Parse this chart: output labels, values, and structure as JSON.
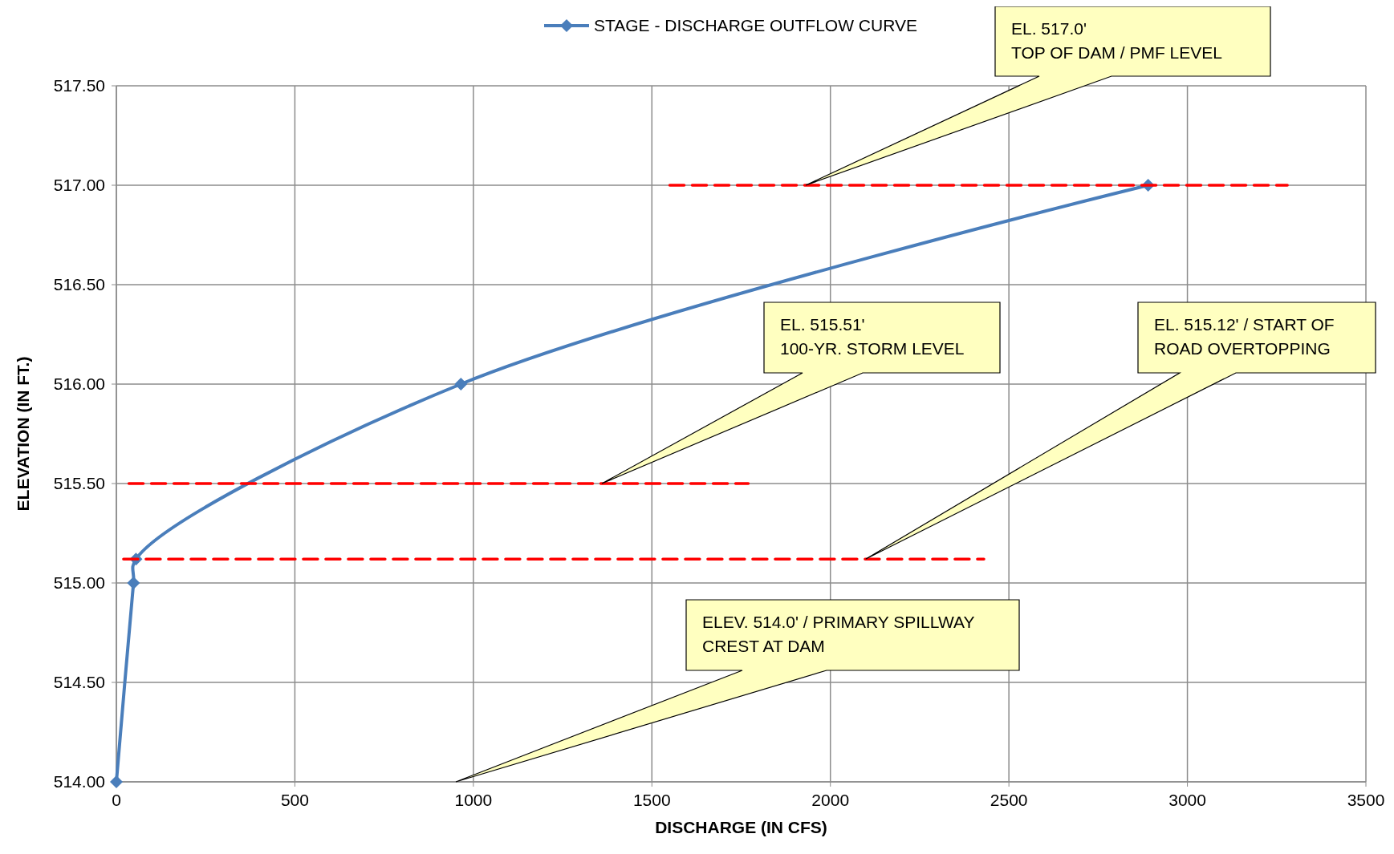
{
  "chart_data": {
    "type": "line",
    "xlabel": "DISCHARGE (IN CFS)",
    "ylabel": "ELEVATION (IN FT.)",
    "xlim": [
      0,
      3500
    ],
    "xticks": [
      0,
      500,
      1000,
      1500,
      2000,
      2500,
      3000,
      3500
    ],
    "ylim": [
      514,
      517.5
    ],
    "yticks": [
      {
        "value": 514,
        "label": "514.00"
      },
      {
        "value": 514.5,
        "label": "514.50"
      },
      {
        "value": 515,
        "label": "515.00"
      },
      {
        "value": 515.5,
        "label": "515.50"
      },
      {
        "value": 516,
        "label": "516.00"
      },
      {
        "value": 516.5,
        "label": "516.50"
      },
      {
        "value": 517,
        "label": "517.00"
      },
      {
        "value": 517.5,
        "label": "517.50"
      }
    ],
    "grid": true,
    "legend": "top",
    "series": [
      {
        "name": "STAGE - DISCHARGE OUTFLOW CURVE",
        "color": "#4a7ebb",
        "x": [
          0,
          48,
          55,
          965,
          2890
        ],
        "values": [
          514,
          515,
          515.12,
          516,
          517
        ],
        "marker": "diamond",
        "line_style": "solid"
      },
      {
        "color": "#ff0000",
        "x": [
          1550,
          3280
        ],
        "values": [
          517,
          517
        ],
        "marker": "none",
        "line_style": "dashed"
      },
      {
        "color": "#ff0000",
        "x": [
          35,
          1770
        ],
        "values": [
          515.5,
          515.5
        ],
        "marker": "none",
        "line_style": "dashed"
      },
      {
        "color": "#ff0000",
        "x": [
          20,
          2430
        ],
        "values": [
          515.12,
          515.12
        ],
        "marker": "none",
        "line_style": "dashed"
      }
    ],
    "annotations": [
      "EL. 517.0'\nTOP OF DAM / PMF LEVEL",
      "EL. 515.51'\n100-YR. STORM LEVEL",
      "EL. 515.12'  / START OF\nROAD OVERTOPPING",
      "ELEV. 514.0'  / PRIMARY SPILLWAY\nCREST AT DAM"
    ]
  }
}
